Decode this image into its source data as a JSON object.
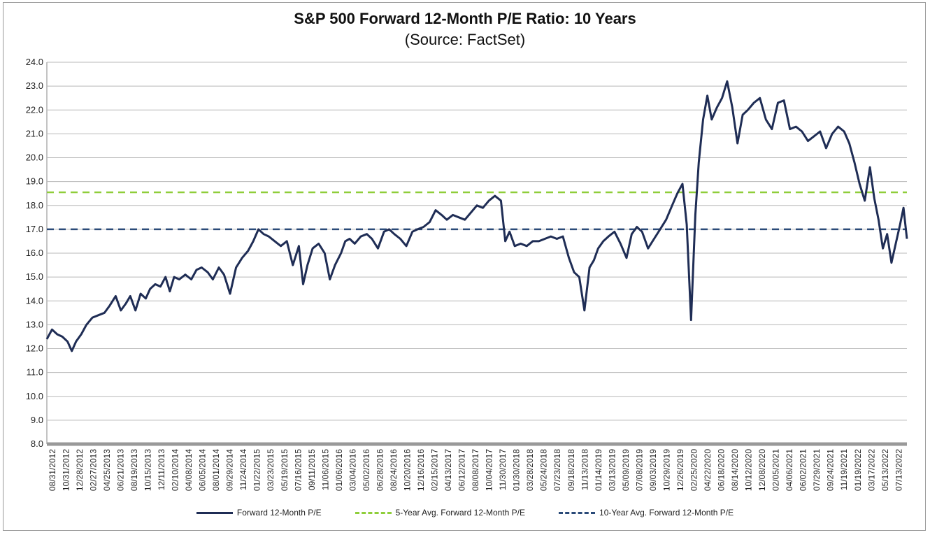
{
  "chart_data": {
    "type": "line",
    "title": "S&P 500 Forward 12-Month P/E Ratio: 10 Years",
    "subtitle": "(Source: FactSet)",
    "xlabel": "",
    "ylabel": "",
    "ylim": [
      8.0,
      24.0
    ],
    "y_ticks": [
      "8.0",
      "9.0",
      "10.0",
      "11.0",
      "12.0",
      "13.0",
      "14.0",
      "15.0",
      "16.0",
      "17.0",
      "18.0",
      "19.0",
      "20.0",
      "21.0",
      "22.0",
      "23.0",
      "24.0"
    ],
    "x_tick_labels": [
      "08/31/2012",
      "10/31/2012",
      "12/28/2012",
      "02/27/2013",
      "04/25/2013",
      "06/21/2013",
      "08/19/2013",
      "10/15/2013",
      "12/11/2013",
      "02/10/2014",
      "04/08/2014",
      "06/05/2014",
      "08/01/2014",
      "09/29/2014",
      "11/24/2014",
      "01/22/2015",
      "03/23/2015",
      "05/19/2015",
      "07/16/2015",
      "09/11/2015",
      "11/06/2015",
      "01/06/2016",
      "03/04/2016",
      "05/02/2016",
      "06/28/2016",
      "08/24/2016",
      "10/20/2016",
      "12/16/2016",
      "02/15/2017",
      "04/13/2017",
      "06/12/2017",
      "08/08/2017",
      "10/04/2017",
      "11/30/2017",
      "01/30/2018",
      "03/28/2018",
      "05/24/2018",
      "07/23/2018",
      "09/18/2018",
      "11/13/2018",
      "01/14/2019",
      "03/13/2019",
      "05/09/2019",
      "07/08/2019",
      "09/03/2019",
      "10/29/2019",
      "12/26/2019",
      "02/25/2020",
      "04/22/2020",
      "06/18/2020",
      "08/14/2020",
      "10/12/2020",
      "12/08/2020",
      "02/05/2021",
      "04/06/2021",
      "06/02/2021",
      "07/29/2021",
      "09/24/2021",
      "11/19/2021",
      "01/19/2022",
      "03/17/2022",
      "05/13/2022",
      "07/13/2022"
    ],
    "x_range": [
      0,
      100
    ],
    "series": [
      {
        "name": "Forward 12-Month P/E",
        "color": "#1f2d55",
        "style": "solid",
        "x": [
          0,
          0.6,
          1.2,
          1.8,
          2.4,
          2.9,
          3.4,
          4.0,
          4.6,
          5.3,
          6.0,
          6.7,
          7.3,
          8.0,
          8.6,
          9.2,
          9.7,
          10.3,
          10.9,
          11.5,
          12.0,
          12.6,
          13.2,
          13.8,
          14.3,
          14.8,
          15.4,
          16.1,
          16.8,
          17.4,
          18.0,
          18.7,
          19.3,
          20.0,
          20.6,
          21.3,
          22.0,
          22.7,
          23.4,
          24.0,
          24.6,
          25.2,
          25.8,
          26.5,
          27.2,
          27.9,
          28.6,
          29.3,
          29.8,
          30.3,
          30.9,
          31.6,
          32.3,
          32.9,
          33.5,
          34.2,
          34.7,
          35.2,
          35.8,
          36.5,
          37.2,
          37.8,
          38.5,
          39.2,
          39.8,
          40.4,
          41.1,
          41.8,
          42.5,
          43.1,
          43.8,
          44.5,
          45.2,
          45.9,
          46.5,
          47.2,
          47.9,
          48.6,
          49.3,
          50.0,
          50.7,
          51.4,
          52.1,
          52.8,
          53.3,
          53.8,
          54.4,
          55.1,
          55.8,
          56.5,
          57.2,
          57.9,
          58.6,
          59.3,
          60.0,
          60.7,
          61.3,
          61.9,
          62.5,
          63.1,
          63.6,
          64.1,
          64.7,
          65.3,
          66.0,
          66.7,
          67.4,
          68.0,
          68.6,
          69.2,
          69.9,
          70.6,
          71.3,
          72.0,
          72.7,
          73.3,
          73.9,
          74.4,
          74.9,
          75.4,
          75.8,
          76.3,
          76.8,
          77.3,
          77.9,
          78.5,
          79.1,
          79.7,
          80.3,
          80.9,
          81.5,
          82.2,
          82.9,
          83.6,
          84.3,
          85.0,
          85.7,
          86.4,
          87.1,
          87.8,
          88.5,
          89.2,
          89.9,
          90.6,
          91.3,
          92.0,
          92.7,
          93.3,
          93.9,
          94.5,
          95.1,
          95.7,
          96.2,
          96.7,
          97.2,
          97.7,
          98.2,
          98.7,
          99.2,
          99.6,
          100
        ],
        "values": [
          12.4,
          12.8,
          12.6,
          12.5,
          12.3,
          11.9,
          12.3,
          12.6,
          13.0,
          13.3,
          13.4,
          13.5,
          13.8,
          14.2,
          13.6,
          13.9,
          14.2,
          13.6,
          14.3,
          14.1,
          14.5,
          14.7,
          14.6,
          15.0,
          14.4,
          15.0,
          14.9,
          15.1,
          14.9,
          15.3,
          15.4,
          15.2,
          14.9,
          15.4,
          15.1,
          14.3,
          15.4,
          15.8,
          16.1,
          16.5,
          17.0,
          16.8,
          16.7,
          16.5,
          16.3,
          16.5,
          15.5,
          16.3,
          14.7,
          15.5,
          16.2,
          16.4,
          16.0,
          14.9,
          15.5,
          16.0,
          16.5,
          16.6,
          16.4,
          16.7,
          16.8,
          16.6,
          16.2,
          16.9,
          17.0,
          16.8,
          16.6,
          16.3,
          16.9,
          17.0,
          17.1,
          17.3,
          17.8,
          17.6,
          17.4,
          17.6,
          17.5,
          17.4,
          17.7,
          18.0,
          17.9,
          18.2,
          18.4,
          18.2,
          16.5,
          16.9,
          16.3,
          16.4,
          16.3,
          16.5,
          16.5,
          16.6,
          16.7,
          16.6,
          16.7,
          15.8,
          15.2,
          15.0,
          13.6,
          15.4,
          15.7,
          16.2,
          16.5,
          16.7,
          16.9,
          16.4,
          15.8,
          16.8,
          17.1,
          16.9,
          16.2,
          16.6,
          17.0,
          17.4,
          18.0,
          18.5,
          18.9,
          17.2,
          13.2,
          17.6,
          19.8,
          21.6,
          22.6,
          21.6,
          22.1,
          22.5,
          23.2,
          22.1,
          20.6,
          21.8,
          22.0,
          22.3,
          22.5,
          21.6,
          21.2,
          22.3,
          22.4,
          21.2,
          21.3,
          21.1,
          20.7,
          20.9,
          21.1,
          20.4,
          21.0,
          21.3,
          21.1,
          20.6,
          19.8,
          18.9,
          18.2,
          19.6,
          18.3,
          17.4,
          16.2,
          16.8,
          15.6,
          16.4,
          17.2,
          17.9,
          16.6
        ]
      },
      {
        "name": "5-Year Avg. Forward 12-Month P/E",
        "color": "#8fce3a",
        "style": "dashed",
        "value": 18.55
      },
      {
        "name": "10-Year Avg. Forward 12-Month P/E",
        "color": "#2a4a78",
        "style": "dashed",
        "value": 17.0
      }
    ],
    "grid": true,
    "legend_position": "bottom"
  }
}
